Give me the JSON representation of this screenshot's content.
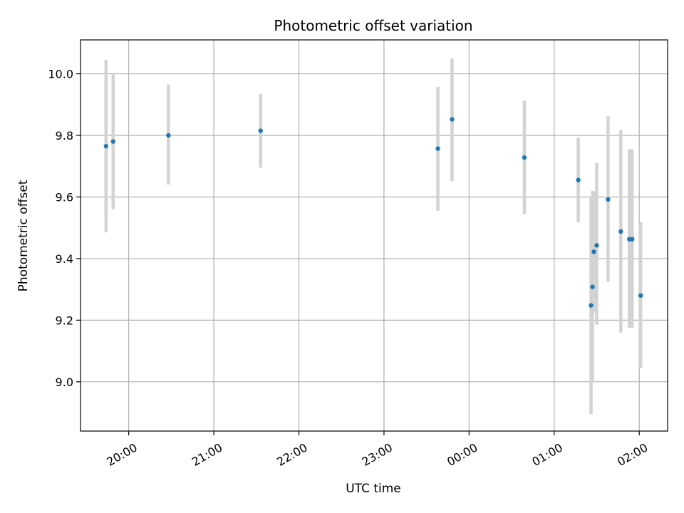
{
  "chart_data": {
    "type": "scatter",
    "title": "Photometric offset variation",
    "xlabel": "UTC time",
    "ylabel": "Photometric offset",
    "ylim": [
      8.84,
      10.11
    ],
    "xlim": [
      "19:26",
      "02:20"
    ],
    "yticks": [
      "9.0",
      "9.2",
      "9.4",
      "9.6",
      "9.8",
      "10.0"
    ],
    "xticks": [
      "20:00",
      "21:00",
      "22:00",
      "23:00",
      "00:00",
      "01:00",
      "02:00"
    ],
    "grid": true,
    "marker_color": "#1f77b4",
    "errorbar_color": "#d3d3d3",
    "points": [
      {
        "x": "19:44",
        "y": 9.765,
        "yerr_low": 9.485,
        "yerr_high": 10.045
      },
      {
        "x": "19:49",
        "y": 9.78,
        "yerr_low": 9.56,
        "yerr_high": 10.0
      },
      {
        "x": "20:28",
        "y": 9.8,
        "yerr_low": 9.64,
        "yerr_high": 9.965
      },
      {
        "x": "21:33",
        "y": 9.815,
        "yerr_low": 9.695,
        "yerr_high": 9.935
      },
      {
        "x": "23:38",
        "y": 9.757,
        "yerr_low": 9.555,
        "yerr_high": 9.957
      },
      {
        "x": "23:48",
        "y": 9.852,
        "yerr_low": 9.652,
        "yerr_high": 10.05
      },
      {
        "x": "00:39",
        "y": 9.728,
        "yerr_low": 9.545,
        "yerr_high": 9.913
      },
      {
        "x": "01:17",
        "y": 9.655,
        "yerr_low": 9.518,
        "yerr_high": 9.793
      },
      {
        "x": "01:26",
        "y": 9.248,
        "yerr_low": 8.895,
        "yerr_high": 9.6
      },
      {
        "x": "01:27",
        "y": 9.308,
        "yerr_low": 9.0,
        "yerr_high": 9.62
      },
      {
        "x": "01:28",
        "y": 9.422,
        "yerr_low": 9.225,
        "yerr_high": 9.618
      },
      {
        "x": "01:30",
        "y": 9.443,
        "yerr_low": 9.185,
        "yerr_high": 9.71
      },
      {
        "x": "01:38",
        "y": 9.592,
        "yerr_low": 9.325,
        "yerr_high": 9.862
      },
      {
        "x": "01:47",
        "y": 9.488,
        "yerr_low": 9.16,
        "yerr_high": 9.818
      },
      {
        "x": "01:53",
        "y": 9.463,
        "yerr_low": 9.175,
        "yerr_high": 9.755
      },
      {
        "x": "01:55",
        "y": 9.463,
        "yerr_low": 9.175,
        "yerr_high": 9.755
      },
      {
        "x": "02:01",
        "y": 9.28,
        "yerr_low": 9.045,
        "yerr_high": 9.518
      }
    ]
  }
}
